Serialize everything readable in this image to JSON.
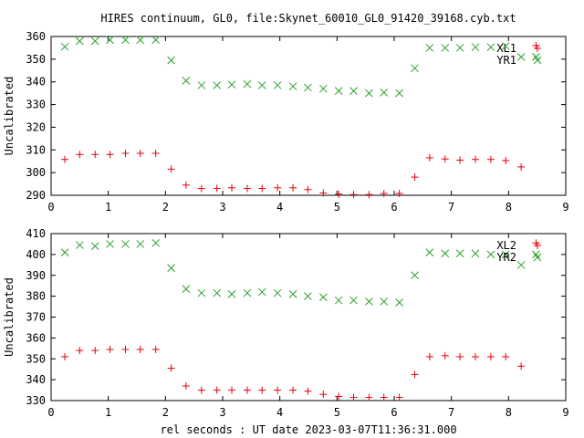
{
  "title": "HIRES continuum, GL0, file:Skynet_60010_GL0_91420_39168.cyb.txt",
  "xlabel": "rel seconds : UT date 2023-03-07T11:36:31.000",
  "colors": {
    "red": "#e8000b",
    "green": "#2ca02c"
  },
  "chart_data": [
    {
      "type": "scatter",
      "ylabel": "Uncalibrated",
      "xlim": [
        0,
        9
      ],
      "ylim": [
        290,
        360
      ],
      "xticks": [
        0,
        1,
        2,
        3,
        4,
        5,
        6,
        7,
        8,
        9
      ],
      "yticks": [
        290,
        300,
        310,
        320,
        330,
        340,
        350,
        360
      ],
      "legend_position": "top-right",
      "series": [
        {
          "name": "XL1",
          "marker": "plus",
          "color": "red",
          "points": [
            [
              0.24,
              305.8
            ],
            [
              0.5,
              308.0
            ],
            [
              0.77,
              308.0
            ],
            [
              1.03,
              308.0
            ],
            [
              1.3,
              308.5
            ],
            [
              1.56,
              308.5
            ],
            [
              1.83,
              308.5
            ],
            [
              2.1,
              301.5
            ],
            [
              2.36,
              294.5
            ],
            [
              2.63,
              293.0
            ],
            [
              2.9,
              293.0
            ],
            [
              3.16,
              293.3
            ],
            [
              3.43,
              293.0
            ],
            [
              3.69,
              293.0
            ],
            [
              3.96,
              293.3
            ],
            [
              4.23,
              293.3
            ],
            [
              4.49,
              292.5
            ],
            [
              4.76,
              291.0
            ],
            [
              5.03,
              290.5
            ],
            [
              5.29,
              290.3
            ],
            [
              5.56,
              290.3
            ],
            [
              5.82,
              290.8
            ],
            [
              6.09,
              290.8
            ],
            [
              6.36,
              298.0
            ],
            [
              6.62,
              306.5
            ],
            [
              6.89,
              306.0
            ],
            [
              7.15,
              305.5
            ],
            [
              7.42,
              305.8
            ],
            [
              7.69,
              305.8
            ],
            [
              7.95,
              305.3
            ],
            [
              8.22,
              302.5
            ],
            [
              8.48,
              356.0
            ]
          ]
        },
        {
          "name": "YR1",
          "marker": "cross",
          "color": "green",
          "points": [
            [
              0.24,
              355.5
            ],
            [
              0.5,
              358.0
            ],
            [
              0.77,
              358.0
            ],
            [
              1.03,
              358.5
            ],
            [
              1.3,
              358.5
            ],
            [
              1.56,
              358.5
            ],
            [
              1.83,
              358.5
            ],
            [
              2.1,
              349.5
            ],
            [
              2.36,
              340.5
            ],
            [
              2.63,
              338.5
            ],
            [
              2.9,
              338.5
            ],
            [
              3.16,
              338.8
            ],
            [
              3.43,
              339.0
            ],
            [
              3.69,
              338.5
            ],
            [
              3.96,
              338.5
            ],
            [
              4.23,
              338.0
            ],
            [
              4.49,
              337.5
            ],
            [
              4.76,
              337.0
            ],
            [
              5.03,
              336.0
            ],
            [
              5.29,
              336.0
            ],
            [
              5.56,
              335.0
            ],
            [
              5.82,
              335.3
            ],
            [
              6.09,
              335.0
            ],
            [
              6.36,
              346.0
            ],
            [
              6.62,
              355.0
            ],
            [
              6.89,
              355.0
            ],
            [
              7.15,
              355.0
            ],
            [
              7.42,
              355.3
            ],
            [
              7.69,
              355.3
            ],
            [
              7.95,
              355.8
            ],
            [
              8.22,
              351.0
            ],
            [
              8.48,
              351.0
            ]
          ]
        }
      ]
    },
    {
      "type": "scatter",
      "ylabel": "Uncalibrated",
      "xlim": [
        0,
        9
      ],
      "ylim": [
        330,
        410
      ],
      "xticks": [
        0,
        1,
        2,
        3,
        4,
        5,
        6,
        7,
        8,
        9
      ],
      "yticks": [
        330,
        340,
        350,
        360,
        370,
        380,
        390,
        400,
        410
      ],
      "legend_position": "top-right",
      "series": [
        {
          "name": "XL2",
          "marker": "plus",
          "color": "red",
          "points": [
            [
              0.24,
              351.0
            ],
            [
              0.5,
              354.0
            ],
            [
              0.77,
              354.0
            ],
            [
              1.03,
              354.5
            ],
            [
              1.3,
              354.5
            ],
            [
              1.56,
              354.5
            ],
            [
              1.83,
              354.5
            ],
            [
              2.1,
              345.5
            ],
            [
              2.36,
              337.0
            ],
            [
              2.63,
              335.0
            ],
            [
              2.9,
              335.0
            ],
            [
              3.16,
              335.0
            ],
            [
              3.43,
              335.0
            ],
            [
              3.69,
              335.0
            ],
            [
              3.96,
              335.0
            ],
            [
              4.23,
              335.0
            ],
            [
              4.49,
              334.5
            ],
            [
              4.76,
              333.0
            ],
            [
              5.03,
              332.0
            ],
            [
              5.29,
              331.5
            ],
            [
              5.56,
              331.5
            ],
            [
              5.82,
              331.5
            ],
            [
              6.09,
              331.5
            ],
            [
              6.36,
              342.5
            ],
            [
              6.62,
              351.0
            ],
            [
              6.89,
              351.5
            ],
            [
              7.15,
              351.0
            ],
            [
              7.42,
              351.0
            ],
            [
              7.69,
              351.0
            ],
            [
              7.95,
              351.0
            ],
            [
              8.22,
              346.5
            ],
            [
              8.48,
              405.5
            ]
          ]
        },
        {
          "name": "YR2",
          "marker": "cross",
          "color": "green",
          "points": [
            [
              0.24,
              401.0
            ],
            [
              0.5,
              404.5
            ],
            [
              0.77,
              404.0
            ],
            [
              1.03,
              405.0
            ],
            [
              1.3,
              405.0
            ],
            [
              1.56,
              405.0
            ],
            [
              1.83,
              405.5
            ],
            [
              2.1,
              393.5
            ],
            [
              2.36,
              383.5
            ],
            [
              2.63,
              381.5
            ],
            [
              2.9,
              381.5
            ],
            [
              3.16,
              381.0
            ],
            [
              3.43,
              381.5
            ],
            [
              3.69,
              382.0
            ],
            [
              3.96,
              381.5
            ],
            [
              4.23,
              381.0
            ],
            [
              4.49,
              380.0
            ],
            [
              4.76,
              379.5
            ],
            [
              5.03,
              378.0
            ],
            [
              5.29,
              378.0
            ],
            [
              5.56,
              377.5
            ],
            [
              5.82,
              377.5
            ],
            [
              6.09,
              377.0
            ],
            [
              6.36,
              390.0
            ],
            [
              6.62,
              401.0
            ],
            [
              6.89,
              400.5
            ],
            [
              7.15,
              400.5
            ],
            [
              7.42,
              400.5
            ],
            [
              7.69,
              400.0
            ],
            [
              7.95,
              400.0
            ],
            [
              8.22,
              395.0
            ],
            [
              8.48,
              400.0
            ]
          ]
        }
      ]
    }
  ]
}
